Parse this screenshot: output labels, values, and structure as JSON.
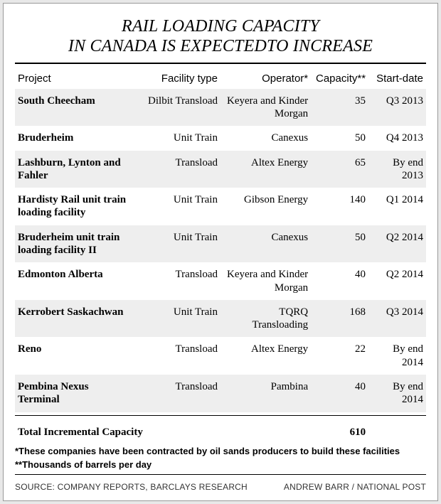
{
  "title_line1": "RAIL LOADING CAPACITY",
  "title_line2": "IN CANADA IS EXPECTEDTO INCREASE",
  "columns": {
    "project": "Project",
    "facility_type": "Facility type",
    "operator": "Operator*",
    "capacity": "Capacity**",
    "start_date": "Start-date"
  },
  "rows": [
    {
      "project": "South Cheecham",
      "facility_type": "Dilbit Transload",
      "operator": "Keyera and Kinder Morgan",
      "capacity": "35",
      "start_date": "Q3 2013",
      "band": true
    },
    {
      "project": "Bruderheim",
      "facility_type": "Unit Train",
      "operator": "Canexus",
      "capacity": "50",
      "start_date": "Q4 2013",
      "band": false
    },
    {
      "project": "Lashburn, Lynton and Fahler",
      "facility_type": "Transload",
      "operator": "Altex Energy",
      "capacity": "65",
      "start_date": "By end 2013",
      "band": true
    },
    {
      "project": "Hardisty Rail unit train loading facility",
      "facility_type": "Unit Train",
      "operator": "Gibson Energy",
      "capacity": "140",
      "start_date": "Q1 2014",
      "band": false
    },
    {
      "project": "Bruderheim unit train loading facility II",
      "facility_type": "Unit Train",
      "operator": "Canexus",
      "capacity": "50",
      "start_date": "Q2 2014",
      "band": true
    },
    {
      "project": "Edmonton Alberta",
      "facility_type": "Transload",
      "operator": "Keyera and Kinder Morgan",
      "capacity": "40",
      "start_date": "Q2 2014",
      "band": false
    },
    {
      "project": "Kerrobert Saskachwan",
      "facility_type": "Unit Train",
      "operator": "TQRQ Transloading",
      "capacity": "168",
      "start_date": "Q3 2014",
      "band": true
    },
    {
      "project": "Reno",
      "facility_type": "Transload",
      "operator": "Altex Energy",
      "capacity": "22",
      "start_date": "By end 2014",
      "band": false
    },
    {
      "project": "Pembina Nexus Terminal",
      "facility_type": "Transload",
      "operator": "Pambina",
      "capacity": "40",
      "start_date": "By end 2014",
      "band": true
    }
  ],
  "total_label": "Total Incremental Capacity",
  "total_value": "610",
  "note1": "*These companies have been contracted by oil sands producers to build these facilities",
  "note2": "**Thousands of barrels per day",
  "source_left": "SOURCE: COMPANY REPORTS, BARCLAYS RESEARCH",
  "source_right": "ANDREW BARR / NATIONAL POST",
  "colors": {
    "band": "#eeeeee",
    "background": "#ffffff",
    "text": "#000000",
    "rule": "#000000"
  }
}
